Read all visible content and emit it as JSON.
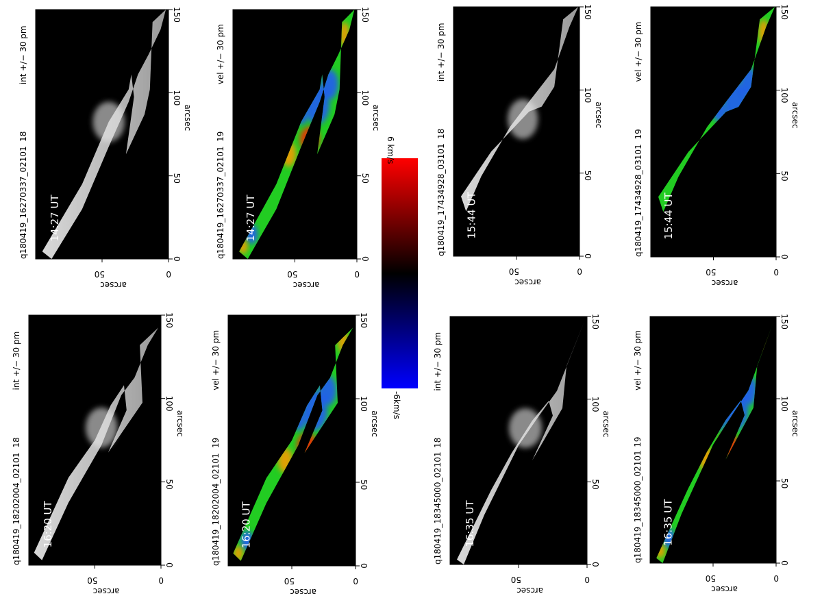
{
  "panels": [
    {
      "id": "p1",
      "kind": "int",
      "file": "q180419_16270337_02101",
      "index": "18",
      "range": "int +/− 30 pm",
      "time": "14:27 UT",
      "x_axis_label": "arcsec",
      "y_axis_label": "arcsec",
      "x_ticks": [
        "0",
        "50",
        "100",
        "150"
      ],
      "y_ticks": [
        "0",
        "50"
      ]
    },
    {
      "id": "p2",
      "kind": "vel",
      "file": "q180419_16270337_02101",
      "index": "19",
      "range": "vel +/− 30 pm",
      "time": "14:27 UT",
      "x_axis_label": "arcsec",
      "y_axis_label": "arcsec",
      "x_ticks": [
        "0",
        "50",
        "100",
        "150"
      ],
      "y_ticks": [
        "0",
        "50"
      ]
    },
    {
      "id": "p3",
      "kind": "int",
      "file": "q180419_17434928_03101",
      "index": "18",
      "range": "int +/− 30 pm",
      "time": "15:44 UT",
      "x_axis_label": "arcsec",
      "y_axis_label": "arcsec",
      "x_ticks": [
        "0",
        "50",
        "100",
        "150"
      ],
      "y_ticks": [
        "0",
        "50"
      ]
    },
    {
      "id": "p4",
      "kind": "vel",
      "file": "q180419_17434928_03101",
      "index": "19",
      "range": "vel +/− 30 pm",
      "time": "15:44 UT",
      "x_axis_label": "arcsec",
      "y_axis_label": "arcsec",
      "x_ticks": [
        "0",
        "50",
        "100",
        "150"
      ],
      "y_ticks": [
        "0",
        "50"
      ]
    },
    {
      "id": "p5",
      "kind": "int",
      "file": "q180419_18202004_02101",
      "index": "18",
      "range": "int +/− 30 pm",
      "time": "16:20 UT",
      "x_axis_label": "arcsec",
      "y_axis_label": "arcsec",
      "x_ticks": [
        "0",
        "50",
        "100",
        "150"
      ],
      "y_ticks": [
        "0",
        "50"
      ]
    },
    {
      "id": "p6",
      "kind": "vel",
      "file": "q180419_18202004_02101",
      "index": "19",
      "range": "vel +/− 30 pm",
      "time": "16:20 UT",
      "x_axis_label": "arcsec",
      "y_axis_label": "arcsec",
      "x_ticks": [
        "0",
        "50",
        "100",
        "150"
      ],
      "y_ticks": [
        "0",
        "50"
      ]
    },
    {
      "id": "p7",
      "kind": "int",
      "file": "q180419_18345000_02101",
      "index": "18",
      "range": "int +/− 30 pm",
      "time": "16:35 UT",
      "x_axis_label": "arcsec",
      "y_axis_label": "arcsec",
      "x_ticks": [
        "0",
        "50",
        "100",
        "150"
      ],
      "y_ticks": [
        "0",
        "50"
      ]
    },
    {
      "id": "p8",
      "kind": "vel",
      "file": "q180419_18345000_02101",
      "index": "19",
      "range": "vel +/− 30 pm",
      "time": "16:35 UT",
      "x_axis_label": "arcsec",
      "y_axis_label": "arcsec",
      "x_ticks": [
        "0",
        "50",
        "100",
        "150"
      ],
      "y_ticks": [
        "0",
        "50"
      ]
    }
  ],
  "colorbar": {
    "max_label": "6 km/s",
    "min_label": "-6km/s",
    "colors": {
      "top": "#ff0000",
      "middle": "#000000",
      "bottom": "#0000ff"
    }
  },
  "colors": {
    "background": "#000000",
    "int_feature": "#b8b8b8",
    "vel_green": "#22cc22",
    "vel_blue": "#2255ff",
    "vel_red": "#ff2200",
    "vel_orange": "#ff9900"
  }
}
